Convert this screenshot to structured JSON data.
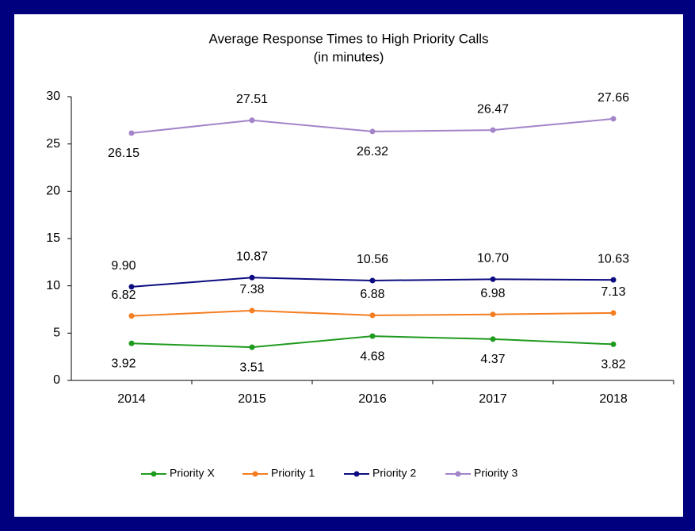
{
  "chart_data": {
    "type": "line",
    "title": "Average Response Times to High Priority Calls",
    "subtitle": "(in minutes)",
    "categories": [
      "2014",
      "2015",
      "2016",
      "2017",
      "2018"
    ],
    "series": [
      {
        "name": "Priority X",
        "color": "#1e9a1e",
        "values": [
          3.92,
          3.51,
          4.68,
          4.37,
          3.82
        ]
      },
      {
        "name": "Priority 1",
        "color": "#f47d20",
        "values": [
          6.82,
          7.38,
          6.88,
          6.98,
          7.13
        ]
      },
      {
        "name": "Priority 2",
        "color": "#0c0c80",
        "values": [
          9.9,
          10.87,
          10.56,
          10.7,
          10.63
        ],
        "value_labels": [
          "9.90",
          "10.87",
          "10.56",
          "10.70",
          "10.63"
        ]
      },
      {
        "name": "Priority 3",
        "color": "#a384c9",
        "values": [
          26.15,
          27.51,
          26.32,
          26.47,
          27.66
        ]
      }
    ],
    "ylim": [
      0,
      30
    ],
    "yticks": [
      0,
      5,
      10,
      15,
      20,
      25,
      30
    ],
    "legend": "bottom"
  }
}
